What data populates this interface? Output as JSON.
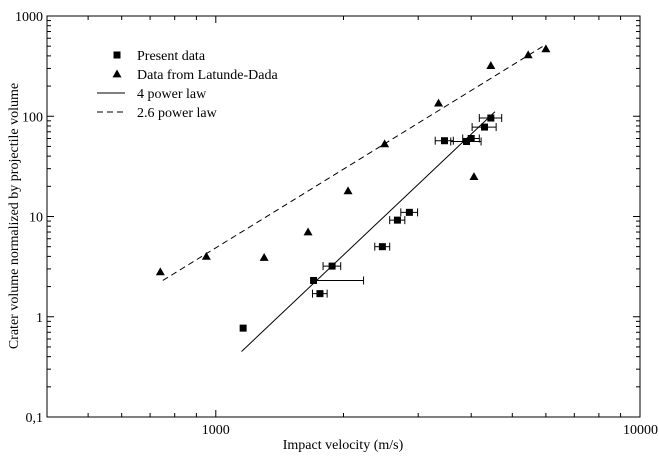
{
  "chart_data": {
    "type": "scatter",
    "title": "",
    "xlabel": "Impact velocity (m/s)",
    "ylabel": "Crater volume normalized by projectile volume",
    "xscale": "log",
    "yscale": "log",
    "xlim": [
      400,
      10000
    ],
    "ylim": [
      0.1,
      1000
    ],
    "xticks": [
      {
        "value": 1000,
        "label": "1000"
      },
      {
        "value": 10000,
        "label": "10000"
      }
    ],
    "yticks": [
      {
        "value": 0.1,
        "label": "0,1"
      },
      {
        "value": 1,
        "label": "1"
      },
      {
        "value": 10,
        "label": "10"
      },
      {
        "value": 100,
        "label": "100"
      },
      {
        "value": 1000,
        "label": "1000"
      }
    ],
    "grid": false,
    "legend_position": "top-left",
    "series": [
      {
        "name": "Present data",
        "marker": "square",
        "points": [
          {
            "x": 1160,
            "y": 0.77
          },
          {
            "x": 1700,
            "y": 2.3,
            "xerr": [
              0,
              530
            ]
          },
          {
            "x": 1760,
            "y": 1.7,
            "xerr": [
              70,
              70
            ]
          },
          {
            "x": 1880,
            "y": 3.2,
            "xerr": [
              90,
              90
            ]
          },
          {
            "x": 2470,
            "y": 5.0,
            "xerr": [
              100,
              100
            ]
          },
          {
            "x": 2680,
            "y": 9.2,
            "xerr": [
              110,
              110
            ]
          },
          {
            "x": 2860,
            "y": 11.0,
            "xerr": [
              130,
              130
            ]
          },
          {
            "x": 3460,
            "y": 57,
            "xerr": [
              170,
              170
            ]
          },
          {
            "x": 3900,
            "y": 56,
            "xerr": [
              320,
              320
            ]
          },
          {
            "x": 4000,
            "y": 60,
            "xerr": [
              180,
              180
            ]
          },
          {
            "x": 4300,
            "y": 78,
            "xerr": [
              280,
              280
            ]
          },
          {
            "x": 4450,
            "y": 96,
            "xerr": [
              270,
              270
            ]
          }
        ]
      },
      {
        "name": "Data from Latunde-Dada",
        "marker": "triangle",
        "points": [
          {
            "x": 740,
            "y": 2.8
          },
          {
            "x": 950,
            "y": 4.0
          },
          {
            "x": 1300,
            "y": 3.9
          },
          {
            "x": 1650,
            "y": 7.0
          },
          {
            "x": 2050,
            "y": 18
          },
          {
            "x": 2500,
            "y": 53
          },
          {
            "x": 3350,
            "y": 135
          },
          {
            "x": 4060,
            "y": 25
          },
          {
            "x": 4450,
            "y": 320
          },
          {
            "x": 5450,
            "y": 410
          },
          {
            "x": 6000,
            "y": 470
          }
        ]
      },
      {
        "name": "4 power law",
        "marker": "line-solid",
        "points": [
          {
            "x": 1150,
            "y": 0.45
          },
          {
            "x": 4550,
            "y": 111
          }
        ]
      },
      {
        "name": "2.6 power law",
        "marker": "line-dashed",
        "points": [
          {
            "x": 750,
            "y": 2.3
          },
          {
            "x": 6000,
            "y": 520
          }
        ]
      }
    ]
  }
}
